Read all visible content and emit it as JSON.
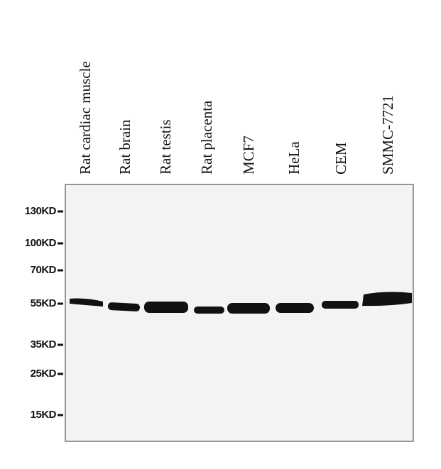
{
  "lanes": [
    "Rat cardiac muscle",
    "Rat brain",
    "Rat testis",
    "Rat placenta",
    "MCF7",
    "HeLa",
    "CEM",
    "SMMC-7721"
  ],
  "markers": [
    "130KD",
    "100KD",
    "70KD",
    "55KD",
    "35KD",
    "25KD",
    "15KD"
  ]
}
